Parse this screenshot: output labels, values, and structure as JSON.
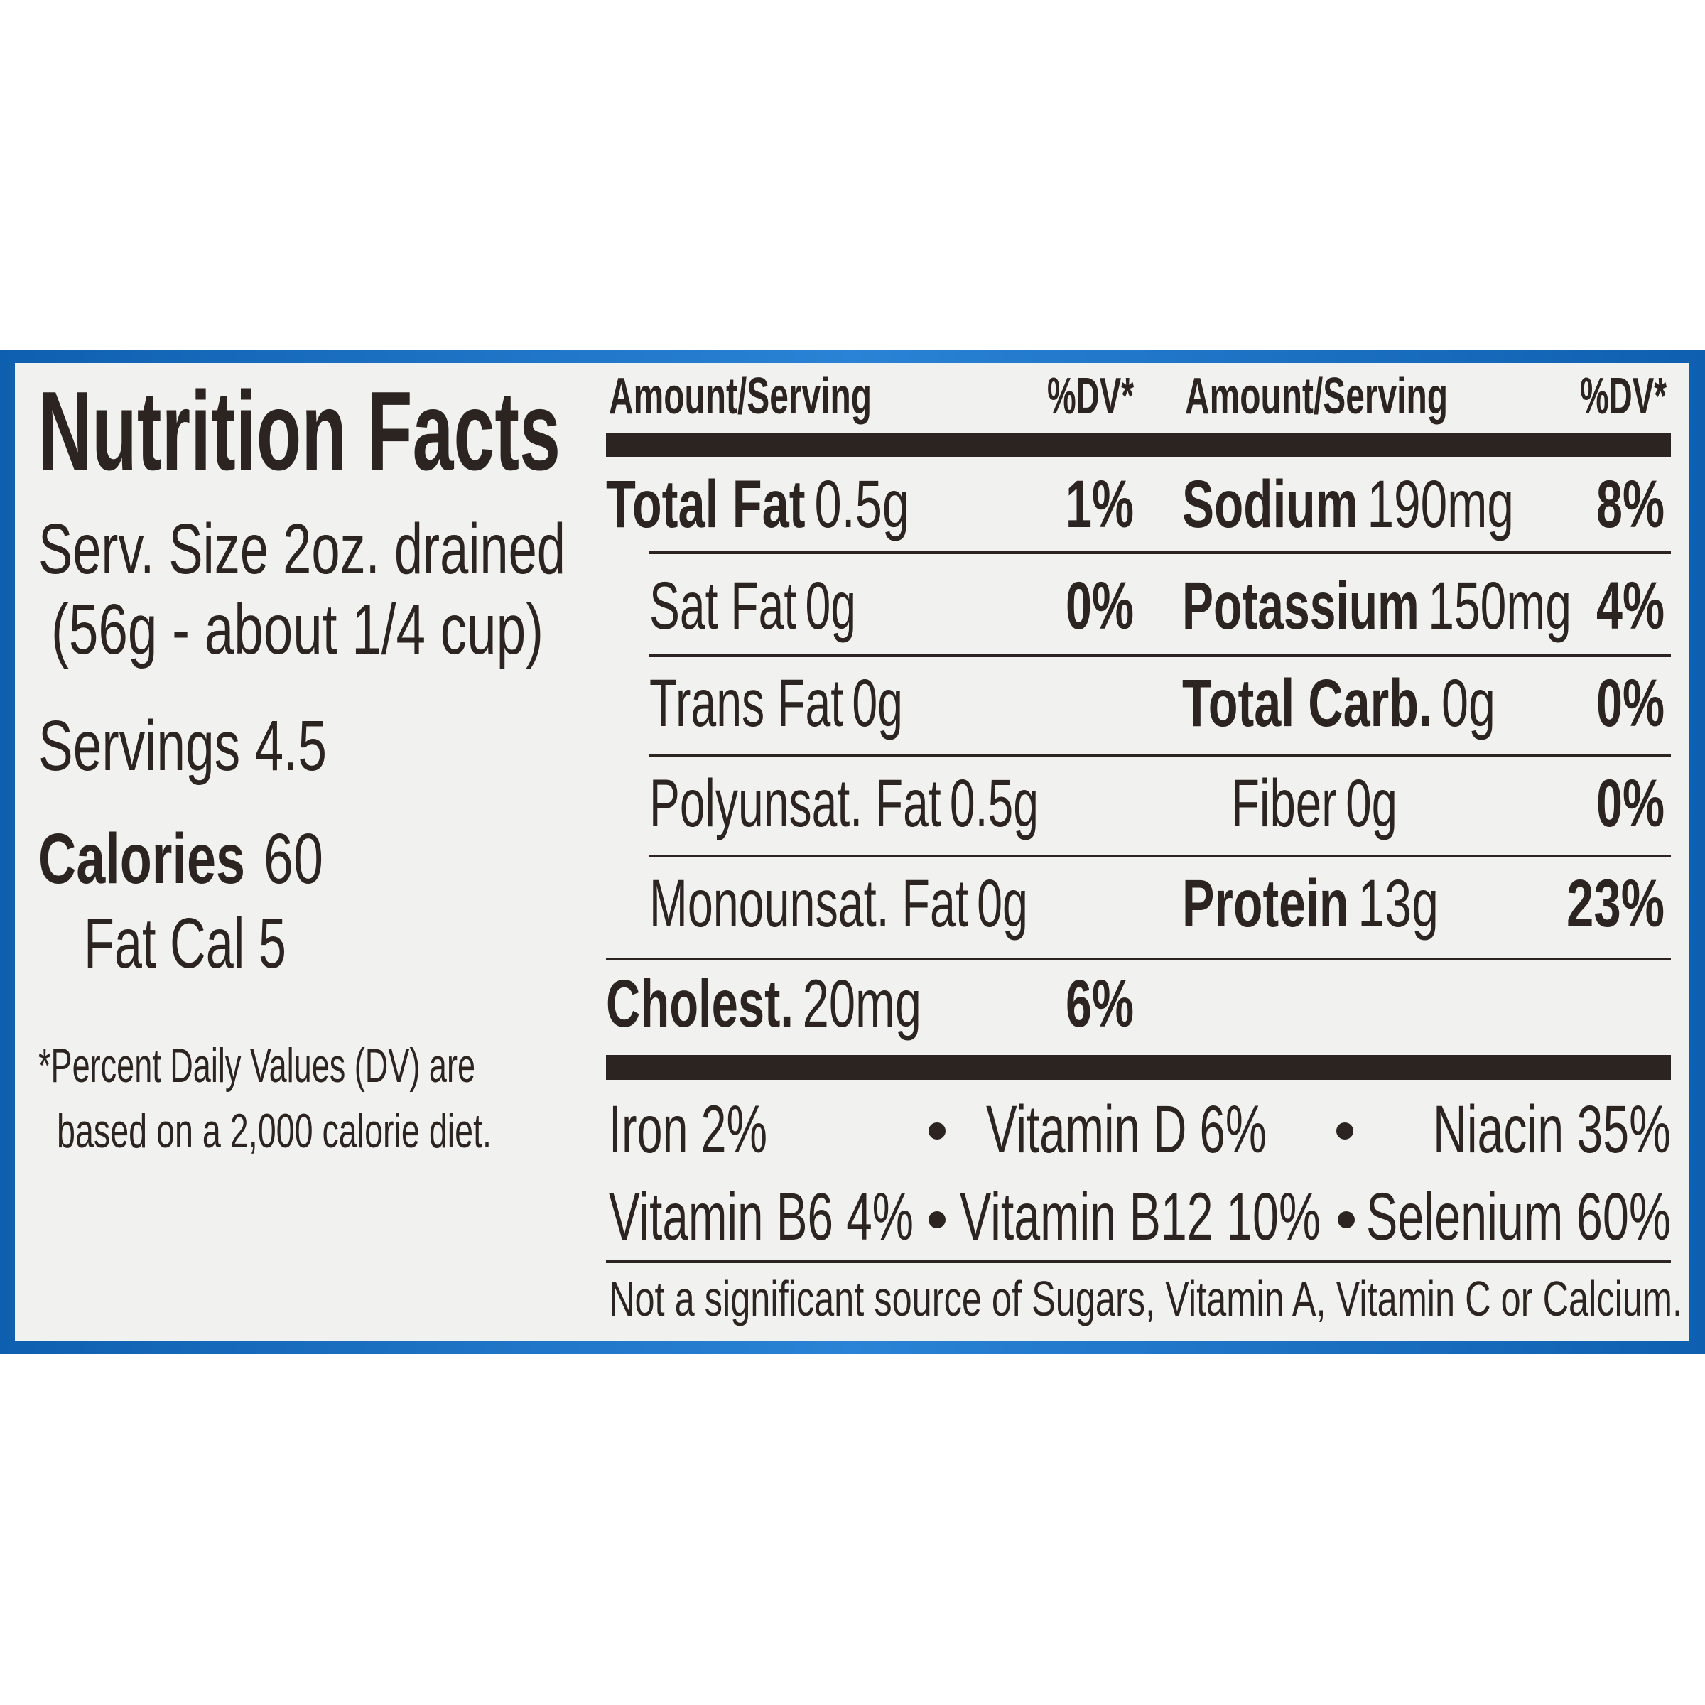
{
  "header": {
    "title": "Nutrition Facts"
  },
  "serving": {
    "size": "Serv. Size 2oz. drained",
    "size_detail": "(56g - about 1/4 cup)",
    "servings": "Servings 4.5"
  },
  "calories": {
    "label": "Calories",
    "value": "60",
    "fat_calories": "Fat Cal 5"
  },
  "footnote": [
    "*Percent Daily Values (DV) are",
    "based on a 2,000 calorie diet."
  ],
  "table": {
    "columns": [
      {
        "amount": "Amount/Serving",
        "dv": "%DV*"
      },
      {
        "amount": "Amount/Serving",
        "dv": "%DV*"
      }
    ],
    "left_rows": [
      {
        "name": "Total Fat",
        "amount": "0.5g",
        "dv": "1%",
        "bold": true
      },
      {
        "name": "Sat Fat",
        "amount": "0g",
        "dv": "0%",
        "sub": true
      },
      {
        "name": "Trans Fat",
        "amount": "0g",
        "sub": true
      },
      {
        "name": "Polyunsat. Fat",
        "amount": "0.5g",
        "sub": true
      },
      {
        "name": "Monounsat. Fat",
        "amount": "0g",
        "sub": true
      },
      {
        "name": "Cholest.",
        "amount": "20mg",
        "dv": "6%",
        "bold": true
      }
    ],
    "right_rows": [
      {
        "name": "Sodium",
        "amount": "190mg",
        "dv": "8%",
        "bold": true
      },
      {
        "name": "Potassium",
        "amount": "150mg",
        "dv": "4%",
        "bold": true
      },
      {
        "name": "Total Carb.",
        "amount": "0g",
        "dv": "0%",
        "bold": true
      },
      {
        "name": "Fiber",
        "amount": "0g",
        "dv": "0%",
        "sub": true
      },
      {
        "name": "Protein",
        "amount": "13g",
        "dv": "23%",
        "bold": true
      }
    ]
  },
  "vitamins": [
    [
      "Iron 2%",
      "Vitamin D 6%",
      "Niacin 35%"
    ],
    [
      "Vitamin B6 4%",
      "Vitamin B12 10%",
      "Selenium 60%"
    ]
  ],
  "note": "Not a significant source of Sugars, Vitamin A, Vitamin C or Calcium."
}
